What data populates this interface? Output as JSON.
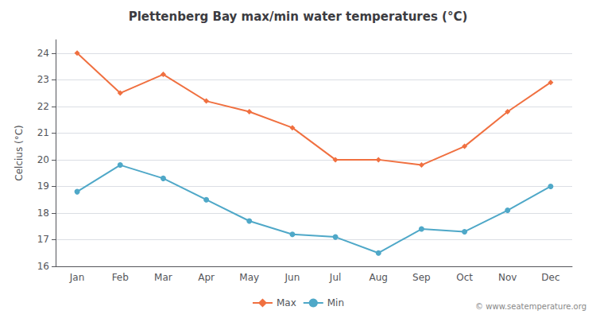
{
  "chart_data": {
    "type": "line",
    "title": "Plettenberg Bay max/min water temperatures (°C)",
    "ylabel": "Celcius (°C)",
    "categories": [
      "Jan",
      "Feb",
      "Mar",
      "Apr",
      "May",
      "Jun",
      "Jul",
      "Aug",
      "Sep",
      "Oct",
      "Nov",
      "Dec"
    ],
    "series": [
      {
        "name": "Max",
        "color": "#f07040",
        "marker": "diamond",
        "values": [
          24.0,
          22.5,
          23.2,
          22.2,
          21.8,
          21.2,
          20.0,
          20.0,
          19.8,
          20.5,
          21.8,
          22.9
        ]
      },
      {
        "name": "Min",
        "color": "#4fa8c8",
        "marker": "circle",
        "values": [
          18.8,
          19.8,
          19.3,
          18.5,
          17.7,
          17.2,
          17.1,
          16.5,
          17.4,
          17.3,
          18.1,
          19.0
        ]
      }
    ],
    "ylim": [
      16,
      24.5
    ],
    "yticks": [
      16,
      17,
      18,
      19,
      20,
      21,
      22,
      23,
      24
    ],
    "grid": true,
    "legend": "bottom",
    "annotations": [
      "© www.seatemperature.org"
    ]
  }
}
